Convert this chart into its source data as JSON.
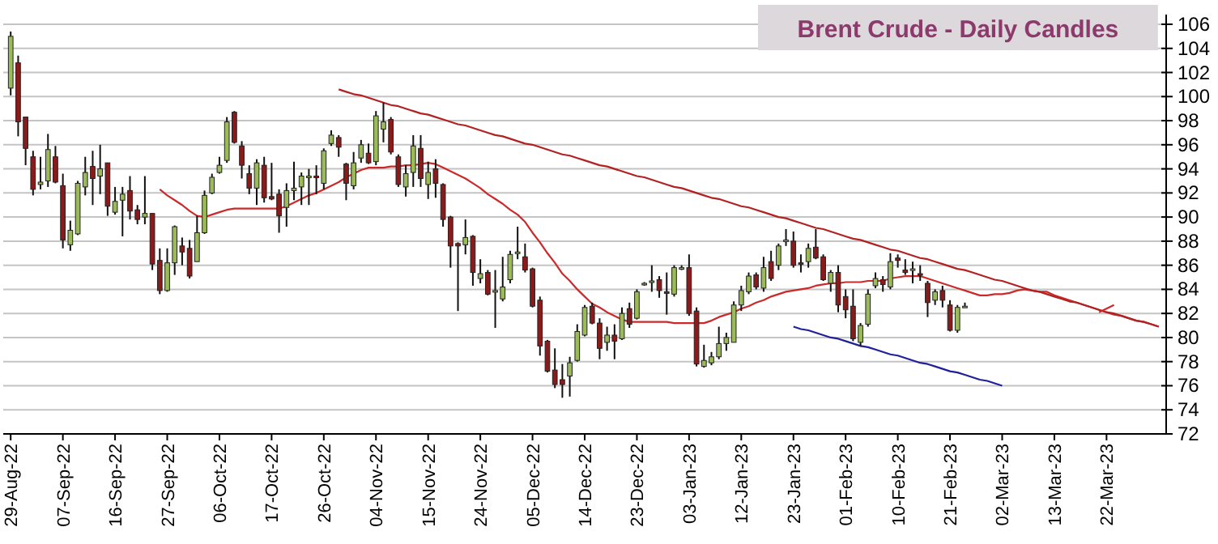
{
  "chart_data": {
    "type": "candlestick",
    "title": "Brent Crude - Daily Candles",
    "categories": [
      "29-Aug-22",
      null,
      null,
      null,
      null,
      null,
      null,
      "07-Sep-22",
      null,
      null,
      null,
      null,
      null,
      null,
      "16-Sep-22",
      null,
      null,
      null,
      null,
      null,
      null,
      "27-Sep-22",
      null,
      null,
      null,
      null,
      null,
      null,
      "06-Oct-22",
      null,
      null,
      null,
      null,
      null,
      null,
      "17-Oct-22",
      null,
      null,
      null,
      null,
      null,
      null,
      "26-Oct-22",
      null,
      null,
      null,
      null,
      null,
      null,
      "04-Nov-22",
      null,
      null,
      null,
      null,
      null,
      null,
      "15-Nov-22",
      null,
      null,
      null,
      null,
      null,
      null,
      "24-Nov-22",
      null,
      null,
      null,
      null,
      null,
      null,
      "05-Dec-22",
      null,
      null,
      null,
      null,
      null,
      null,
      "14-Dec-22",
      null,
      null,
      null,
      null,
      null,
      null,
      "23-Dec-22",
      null,
      null,
      null,
      null,
      null,
      null,
      "03-Jan-23",
      null,
      null,
      null,
      null,
      null,
      null,
      "12-Jan-23",
      null,
      null,
      null,
      null,
      null,
      null,
      "23-Jan-23",
      null,
      null,
      null,
      null,
      null,
      null,
      "01-Feb-23",
      null,
      null,
      null,
      null,
      null,
      null,
      "10-Feb-23",
      null,
      null,
      null,
      null,
      null,
      null,
      "21-Feb-23",
      null,
      null,
      null,
      null,
      null,
      null,
      "02-Mar-23",
      null,
      null,
      null,
      null,
      null,
      null,
      "13-Mar-23",
      null,
      null,
      null,
      null,
      null,
      null,
      "22-Mar-23",
      null,
      null,
      null,
      null,
      null,
      null,
      null
    ],
    "ohlc": [
      [
        100.7,
        105.4,
        100.1,
        105
      ],
      [
        102.8,
        103.4,
        96.7,
        97.9
      ],
      [
        98.3,
        98.3,
        94.3,
        95.7
      ],
      [
        95,
        95.5,
        91.8,
        92.3
      ],
      [
        92.7,
        95,
        92.3,
        92.9
      ],
      [
        93,
        96.9,
        92.5,
        95.6
      ],
      [
        95,
        95.9,
        92.8,
        92.9
      ],
      [
        92.6,
        93.6,
        87.4,
        88.1
      ],
      [
        87.7,
        89.7,
        87.2,
        88.9
      ],
      [
        88.6,
        93,
        88.5,
        92.8
      ],
      [
        92.5,
        95,
        91.8,
        93.7
      ],
      [
        94.2,
        95.5,
        91,
        93.2
      ],
      [
        93.4,
        96,
        91.9,
        94
      ],
      [
        94.5,
        94.5,
        90.1,
        90.9
      ],
      [
        90.4,
        92.5,
        90.2,
        91.3
      ],
      [
        91.4,
        92.5,
        88.4,
        91.9
      ],
      [
        92.2,
        93.4,
        89.8,
        90.5
      ],
      [
        90.6,
        91,
        89.4,
        89.8
      ],
      [
        90,
        93.4,
        89.4,
        90.3
      ],
      [
        90.3,
        90.3,
        85.6,
        86.1
      ],
      [
        86.4,
        87.4,
        83.6,
        83.9
      ],
      [
        83.9,
        87.4,
        83.8,
        86.2
      ],
      [
        86.2,
        89.3,
        85.2,
        89.2
      ],
      [
        87.6,
        88.3,
        86,
        87.1
      ],
      [
        87.4,
        88.1,
        84.9,
        85.1
      ],
      [
        86.3,
        90.1,
        86.3,
        88.7
      ],
      [
        88.7,
        92.2,
        88.6,
        91.8
      ],
      [
        92,
        93.6,
        91.9,
        93.3
      ],
      [
        93.7,
        95,
        93.6,
        94.3
      ],
      [
        94.7,
        98.3,
        94.5,
        97.9
      ],
      [
        98.7,
        98.8,
        96.1,
        96.2
      ],
      [
        95.9,
        96.3,
        93.2,
        94.3
      ],
      [
        93.6,
        94.3,
        91.9,
        92.4
      ],
      [
        92.4,
        94.8,
        91,
        94.5
      ],
      [
        94.3,
        95,
        91.2,
        91.6
      ],
      [
        91.7,
        94.5,
        91.4,
        91.5
      ],
      [
        91.9,
        92.3,
        88.7,
        90.1
      ],
      [
        90.8,
        92.8,
        89.2,
        92.2
      ],
      [
        92.2,
        94.6,
        91.4,
        92.4
      ],
      [
        92.5,
        93.7,
        91,
        93.4
      ],
      [
        93.3,
        94,
        91,
        93.4
      ],
      [
        93.4,
        94.3,
        91.9,
        93.3
      ],
      [
        92.8,
        95.7,
        92.3,
        95.5
      ],
      [
        96.1,
        97.2,
        95.9,
        96.8
      ],
      [
        96.6,
        96.8,
        95,
        95.8
      ],
      [
        94.4,
        94.5,
        91.4,
        92.8
      ],
      [
        92.6,
        95.4,
        92.3,
        94.5
      ],
      [
        94.9,
        96.4,
        94.5,
        96
      ],
      [
        95.3,
        96.1,
        94.4,
        94.5
      ],
      [
        94.6,
        98.8,
        94.3,
        98.4
      ],
      [
        97.3,
        99.5,
        96.2,
        97.9
      ],
      [
        98.1,
        98.3,
        95.2,
        95.4
      ],
      [
        95,
        95.2,
        92.5,
        92.7
      ],
      [
        92.5,
        94.3,
        91.7,
        93.6
      ],
      [
        93.7,
        96.8,
        92.5,
        95.9
      ],
      [
        95.7,
        96.8,
        92.5,
        93.2
      ],
      [
        92.7,
        94.6,
        91.5,
        93.7
      ],
      [
        94,
        94.8,
        91.6,
        92.8
      ],
      [
        92.7,
        92.8,
        89.2,
        89.8
      ],
      [
        90,
        90.1,
        85.8,
        87.6
      ],
      [
        87.8,
        87.9,
        82.2,
        87.6
      ],
      [
        87.7,
        89.8,
        86.9,
        88.3
      ],
      [
        88.4,
        88.5,
        84.3,
        85.4
      ],
      [
        84.9,
        86.5,
        84.5,
        85.3
      ],
      [
        85.4,
        85.6,
        83.5,
        83.6
      ],
      [
        83.8,
        85.6,
        80.8,
        83.9
      ],
      [
        83.2,
        86.7,
        83,
        84.2
      ],
      [
        84.8,
        87.2,
        84.5,
        86.9
      ],
      [
        87,
        89.2,
        86.5,
        87.1
      ],
      [
        86.7,
        87.8,
        85.4,
        85.6
      ],
      [
        85.7,
        85.8,
        82.5,
        82.6
      ],
      [
        83.1,
        83.4,
        78.5,
        79.3
      ],
      [
        79.7,
        79.8,
        77.1,
        77.2
      ],
      [
        77.3,
        79.1,
        75.8,
        76.1
      ],
      [
        76.5,
        77.8,
        75,
        76.1
      ],
      [
        76.8,
        78.4,
        75.1,
        77.9
      ],
      [
        78.1,
        81.1,
        78,
        80.5
      ],
      [
        80.2,
        82.7,
        80.1,
        82.5
      ],
      [
        82.6,
        82.9,
        81.1,
        81.2
      ],
      [
        81.2,
        81.6,
        78.2,
        79.1
      ],
      [
        79.6,
        80.9,
        78.9,
        80.2
      ],
      [
        80.2,
        81.1,
        78.2,
        79.7
      ],
      [
        79.9,
        82.5,
        79.8,
        82
      ],
      [
        82.4,
        82.9,
        80.8,
        81.1
      ],
      [
        81.6,
        84,
        81.5,
        83.8
      ],
      [
        84.4,
        84.6,
        84.3,
        84.5
      ],
      [
        84.6,
        86,
        83.8,
        84.7
      ],
      [
        84.8,
        85.1,
        83.3,
        83.9
      ],
      [
        83.8,
        85.4,
        81.9,
        83.7
      ],
      [
        83.6,
        86,
        83.4,
        85.8
      ],
      [
        85.7,
        86,
        85.6,
        85.8
      ],
      [
        85.8,
        86.9,
        81.8,
        82
      ],
      [
        82.2,
        82.5,
        77.6,
        77.8
      ],
      [
        77.6,
        79.4,
        77.5,
        78.1
      ],
      [
        77.9,
        78.8,
        77.7,
        78.4
      ],
      [
        78.4,
        80.9,
        78.2,
        79.5
      ],
      [
        79.5,
        80.4,
        78.9,
        80
      ],
      [
        79.6,
        83,
        79.6,
        82.7
      ],
      [
        82.7,
        84.3,
        82.2,
        83.9
      ],
      [
        83.8,
        85.4,
        83.6,
        85.1
      ],
      [
        85.2,
        85.4,
        84,
        84.2
      ],
      [
        84.1,
        86.7,
        83.8,
        85.8
      ],
      [
        86.3,
        87.2,
        84.7,
        84.9
      ],
      [
        86,
        87.8,
        85.6,
        87.6
      ],
      [
        88,
        89,
        87.6,
        88.1
      ],
      [
        88,
        88.8,
        85.8,
        86
      ],
      [
        86.2,
        86.9,
        85.4,
        86.1
      ],
      [
        86.3,
        87.8,
        85.8,
        87.4
      ],
      [
        87.5,
        89,
        86.5,
        86.6
      ],
      [
        86.7,
        86.9,
        84.7,
        84.8
      ],
      [
        84.5,
        85.6,
        83.8,
        85.4
      ],
      [
        85.4,
        86,
        82.1,
        82.7
      ],
      [
        83.4,
        84,
        81.6,
        82.3
      ],
      [
        82.6,
        84,
        79.7,
        79.9
      ],
      [
        79.6,
        81.2,
        79.3,
        81
      ],
      [
        81.1,
        84,
        80.9,
        83.6
      ],
      [
        84.3,
        85.4,
        84.1,
        84.9
      ],
      [
        84.8,
        85.1,
        83.8,
        84.4
      ],
      [
        84.2,
        87,
        84,
        86.3
      ],
      [
        86.6,
        86.9,
        85.8,
        86.4
      ],
      [
        85.6,
        86.5,
        85.2,
        85.4
      ],
      [
        85.6,
        86.3,
        84.5,
        85.7
      ],
      [
        85.3,
        86,
        84.7,
        85.2
      ],
      [
        84.5,
        84.7,
        81.7,
        82.9
      ],
      [
        83.1,
        84,
        82.7,
        83.8
      ],
      [
        83.9,
        84.3,
        82.5,
        83.1
      ],
      [
        82.7,
        83.1,
        80.5,
        80.6
      ],
      [
        80.6,
        82.7,
        80.4,
        82.5
      ],
      [
        82.6,
        82.9,
        82.5,
        82.6
      ],
      null,
      null,
      null,
      null,
      null,
      null,
      null,
      null,
      null,
      null,
      null,
      null,
      null,
      null,
      null,
      null,
      null,
      null,
      null,
      null,
      null,
      null,
      null,
      null,
      null,
      null
    ],
    "colors": [
      "#9bbb59",
      "#8b1a1a",
      "#8b1a1a",
      "#8b1a1a",
      "#9bbb59",
      "#9bbb59",
      "#8b1a1a",
      "#8b1a1a",
      "#9bbb59",
      "#9bbb59",
      "#9bbb59",
      "#8b1a1a",
      "#9bbb59",
      "#8b1a1a",
      "#9bbb59",
      "#9bbb59",
      "#8b1a1a",
      "#8b1a1a",
      "#9bbb59",
      "#8b1a1a",
      "#8b1a1a",
      "#9bbb59",
      "#9bbb59",
      "#8b1a1a",
      "#8b1a1a",
      "#9bbb59",
      "#9bbb59",
      "#9bbb59",
      "#9bbb59",
      "#9bbb59",
      "#8b1a1a",
      "#8b1a1a",
      "#8b1a1a",
      "#9bbb59",
      "#8b1a1a",
      "#8b1a1a",
      "#8b1a1a",
      "#9bbb59",
      "#9bbb59",
      "#9bbb59",
      "#9bbb59",
      "#8b1a1a",
      "#9bbb59",
      "#9bbb59",
      "#8b1a1a",
      "#8b1a1a",
      "#9bbb59",
      "#9bbb59",
      "#8b1a1a",
      "#9bbb59",
      "#9bbb59",
      "#8b1a1a",
      "#8b1a1a",
      "#9bbb59",
      "#9bbb59",
      "#8b1a1a",
      "#9bbb59",
      "#8b1a1a",
      "#8b1a1a",
      "#8b1a1a",
      "#8b1a1a",
      "#9bbb59",
      "#8b1a1a",
      "#9bbb59",
      "#8b1a1a",
      "#9bbb59",
      "#9bbb59",
      "#9bbb59",
      "#9bbb59",
      "#8b1a1a",
      "#8b1a1a",
      "#8b1a1a",
      "#8b1a1a",
      "#8b1a1a",
      "#8b1a1a",
      "#9bbb59",
      "#9bbb59",
      "#9bbb59",
      "#8b1a1a",
      "#8b1a1a",
      "#9bbb59",
      "#8b1a1a",
      "#9bbb59",
      "#8b1a1a",
      "#9bbb59",
      "#9bbb59",
      "#9bbb59",
      "#8b1a1a",
      "#8b1a1a",
      "#9bbb59",
      "#9bbb59",
      "#8b1a1a",
      "#8b1a1a",
      "#9bbb59",
      "#9bbb59",
      "#9bbb59",
      "#9bbb59",
      "#9bbb59",
      "#9bbb59",
      "#9bbb59",
      "#8b1a1a",
      "#9bbb59",
      "#8b1a1a",
      "#9bbb59",
      "#9bbb59",
      "#8b1a1a",
      "#8b1a1a",
      "#9bbb59",
      "#8b1a1a",
      "#8b1a1a",
      "#9bbb59",
      "#8b1a1a",
      "#8b1a1a",
      "#8b1a1a",
      "#9bbb59",
      "#9bbb59",
      "#9bbb59",
      "#8b1a1a",
      "#9bbb59",
      "#8b1a1a",
      "#8b1a1a",
      "#9bbb59",
      "#8b1a1a",
      "#8b1a1a",
      "#9bbb59",
      "#8b1a1a",
      "#8b1a1a",
      "#9bbb59",
      "#9bbb59",
      null,
      null,
      null,
      null,
      null,
      null,
      null,
      null,
      null,
      null,
      null,
      null,
      null,
      null,
      null,
      null,
      null,
      null,
      null,
      null,
      null,
      null,
      null,
      null,
      null,
      null
    ],
    "series": [
      {
        "type": "line",
        "color": "#cc2a2a",
        "values": [
          null,
          null,
          null,
          null,
          null,
          null,
          null,
          null,
          null,
          null,
          null,
          null,
          null,
          null,
          null,
          null,
          null,
          null,
          null,
          null,
          92.3,
          91.8,
          91.4,
          91.0,
          90.5,
          90.1,
          90.0,
          90.2,
          90.4,
          90.6,
          90.7,
          90.7,
          90.7,
          90.7,
          90.7,
          90.7,
          90.7,
          90.9,
          91.2,
          91.5,
          91.8,
          92.0,
          92.3,
          92.6,
          92.9,
          93.3,
          93.6,
          93.9,
          94.1,
          94.1,
          94.1,
          94.2,
          94.2,
          94.3,
          94.3,
          94.4,
          94.5,
          94.4,
          94.1,
          93.8,
          93.5,
          93.2,
          92.8,
          92.4,
          91.9,
          91.5,
          91.1,
          90.6,
          90.2,
          89.6,
          88.7,
          87.9,
          87.0,
          86.2,
          85.3,
          84.7,
          84.0,
          83.4,
          82.8,
          82.5,
          82.1,
          81.8,
          81.5,
          81.3,
          81.3,
          81.3,
          81.3,
          81.3,
          81.3,
          81.2,
          81.2,
          81.2,
          81.2,
          81.2,
          81.4,
          81.7,
          81.9,
          82.1,
          82.4,
          82.6,
          82.9,
          83.1,
          83.4,
          83.6,
          83.8,
          83.9,
          84.0,
          84.1,
          84.3,
          84.4,
          84.5,
          84.5,
          84.6,
          84.6,
          84.6,
          84.7,
          84.7,
          84.7,
          84.9,
          85.0,
          85.1,
          85.1,
          85.1,
          84.9,
          84.7,
          84.5,
          84.3,
          84.1,
          83.9,
          83.7,
          83.5,
          83.5,
          83.6,
          83.6,
          83.7,
          83.9,
          84.0,
          83.9,
          83.8,
          83.8,
          83.5,
          83.3,
          83.1,
          82.9,
          82.7,
          82.5,
          82.3,
          82.1,
          81.9,
          81.8,
          81.6,
          81.4,
          81.3,
          81.1,
          80.9
        ]
      },
      {
        "type": "line",
        "color": "#b22222",
        "values": [
          null,
          null,
          null,
          null,
          null,
          null,
          null,
          null,
          null,
          null,
          null,
          null,
          null,
          null,
          null,
          null,
          null,
          null,
          null,
          null,
          null,
          null,
          null,
          null,
          null,
          null,
          null,
          null,
          null,
          null,
          null,
          null,
          null,
          null,
          null,
          null,
          null,
          null,
          null,
          null,
          null,
          null,
          null,
          null,
          100.6,
          100.4,
          100.2,
          100.1,
          99.9,
          99.7,
          99.5,
          99.3,
          99.2,
          99.0,
          98.8,
          98.6,
          98.5,
          98.3,
          98.1,
          97.9,
          97.7,
          97.6,
          97.4,
          97.2,
          97.0,
          96.8,
          96.7,
          96.5,
          96.3,
          96.1,
          96.0,
          95.8,
          95.6,
          95.4,
          95.2,
          95.1,
          94.9,
          94.7,
          94.5,
          94.3,
          94.2,
          94.0,
          93.8,
          93.6,
          93.4,
          93.3,
          93.1,
          92.9,
          92.7,
          92.5,
          92.4,
          92.2,
          92.0,
          91.8,
          91.6,
          91.5,
          91.3,
          91.1,
          90.9,
          90.8,
          90.6,
          90.4,
          90.2,
          90.0,
          89.9,
          89.7,
          89.5,
          89.3,
          89.1,
          89.0,
          88.8,
          88.6,
          88.4,
          88.2,
          88.1,
          87.9,
          87.7,
          87.5,
          87.3,
          87.2,
          87.0,
          86.8,
          86.6,
          86.5,
          86.3,
          86.1,
          85.9,
          85.7,
          85.6,
          85.4,
          85.2,
          85.0,
          84.8,
          84.7,
          84.5,
          84.3,
          84.1,
          83.9,
          83.8,
          83.6,
          83.4,
          83.2,
          83.0,
          82.9,
          82.7,
          82.5,
          82.3,
          82.1,
          82.0,
          81.8,
          81.6,
          81.4,
          81.3,
          81.1,
          80.9
        ]
      },
      {
        "type": "line",
        "color": "#20209a",
        "values": [
          null,
          null,
          null,
          null,
          null,
          null,
          null,
          null,
          null,
          null,
          null,
          null,
          null,
          null,
          null,
          null,
          null,
          null,
          null,
          null,
          null,
          null,
          null,
          null,
          null,
          null,
          null,
          null,
          null,
          null,
          null,
          null,
          null,
          null,
          null,
          null,
          null,
          null,
          null,
          null,
          null,
          null,
          null,
          null,
          null,
          null,
          null,
          null,
          null,
          null,
          null,
          null,
          null,
          null,
          null,
          null,
          null,
          null,
          null,
          null,
          null,
          null,
          null,
          null,
          null,
          null,
          null,
          null,
          null,
          null,
          null,
          null,
          null,
          null,
          null,
          null,
          null,
          null,
          null,
          null,
          null,
          null,
          null,
          null,
          null,
          null,
          null,
          null,
          null,
          null,
          null,
          null,
          null,
          null,
          null,
          null,
          null,
          null,
          null,
          null,
          null,
          null,
          null,
          null,
          null,
          80.9,
          80.7,
          80.6,
          80.4,
          80.2,
          80.0,
          79.9,
          79.7,
          79.5,
          79.3,
          79.2,
          79.0,
          78.8,
          78.6,
          78.5,
          78.3,
          78.1,
          77.9,
          77.8,
          77.6,
          77.4,
          77.2,
          77.1,
          76.9,
          76.7,
          76.5,
          76.4,
          76.2,
          76.0,
          null,
          null,
          null,
          null,
          null,
          null,
          null,
          null,
          null,
          null,
          null,
          null,
          null,
          null,
          null,
          null,
          null,
          null,
          null,
          null,
          null
        ]
      },
      {
        "type": "line",
        "color": "#cc2a2a",
        "values": [
          null,
          null,
          null,
          null,
          null,
          null,
          null,
          null,
          null,
          null,
          null,
          null,
          null,
          null,
          null,
          null,
          null,
          null,
          null,
          null,
          null,
          null,
          null,
          null,
          null,
          null,
          null,
          null,
          null,
          null,
          null,
          null,
          null,
          null,
          null,
          null,
          null,
          null,
          null,
          null,
          null,
          null,
          null,
          null,
          null,
          null,
          null,
          null,
          null,
          null,
          null,
          null,
          null,
          null,
          null,
          null,
          null,
          null,
          null,
          null,
          null,
          null,
          null,
          null,
          null,
          null,
          null,
          null,
          null,
          null,
          null,
          null,
          null,
          null,
          null,
          null,
          null,
          null,
          null,
          null,
          null,
          null,
          null,
          null,
          null,
          null,
          null,
          null,
          null,
          null,
          null,
          null,
          null,
          null,
          null,
          null,
          null,
          null,
          null,
          null,
          null,
          null,
          null,
          null,
          null,
          null,
          null,
          null,
          null,
          null,
          null,
          null,
          null,
          null,
          null,
          null,
          null,
          null,
          null,
          null,
          null,
          null,
          null,
          null,
          null,
          null,
          null,
          null,
          null,
          null,
          null,
          null,
          null,
          null,
          null,
          null,
          null,
          null,
          null,
          null,
          null,
          null,
          null,
          null,
          null,
          null,
          82.1,
          82.4,
          82.7,
          null,
          null,
          null,
          null,
          null,
          null
        ]
      }
    ],
    "ylim": [
      72,
      106
    ],
    "yticks": [
      72,
      74,
      76,
      78,
      80,
      82,
      84,
      86,
      88,
      90,
      92,
      94,
      96,
      98,
      100,
      102,
      104,
      106
    ],
    "grid": "y"
  }
}
